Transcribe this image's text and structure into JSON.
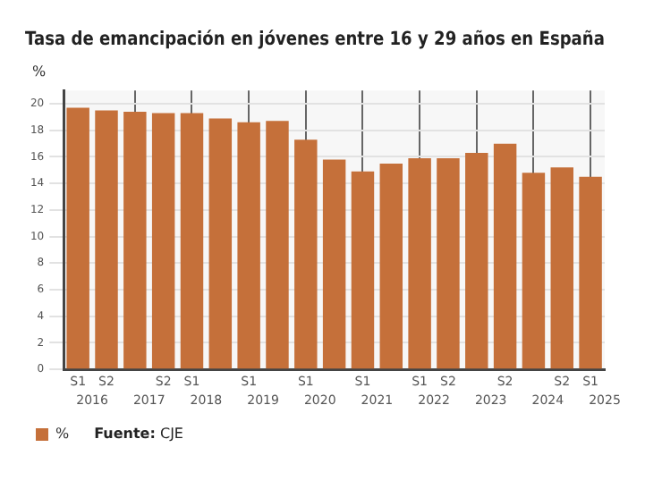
{
  "chart_data": {
    "type": "bar",
    "title": "Tasa de emancipación en jóvenes entre 16 y 29 años en España",
    "ylabel": "%",
    "categories": [
      "S1",
      "S2",
      null,
      "S2",
      "S1",
      null,
      "S1",
      null,
      "S1",
      null,
      "S1",
      null,
      "S1",
      "S2",
      null,
      "S2",
      null,
      "S2",
      "S1"
    ],
    "series": [
      {
        "name": "%",
        "color": "#c5703a",
        "values": [
          19.7,
          19.5,
          19.4,
          19.3,
          19.3,
          18.9,
          18.6,
          18.7,
          17.3,
          15.8,
          14.9,
          15.5,
          15.9,
          15.9,
          16.3,
          17.0,
          14.8,
          15.2,
          14.5
        ]
      }
    ],
    "ylim": [
      0,
      21
    ],
    "yticks": [
      0,
      2,
      4,
      6,
      8,
      10,
      12,
      14,
      16,
      18,
      20
    ],
    "grid": true,
    "legend": "bottom",
    "annotations": [
      "2016",
      "2017",
      "2018",
      "2019",
      "2020",
      "2021",
      "2022",
      "2023",
      "2024",
      "2025",
      "Fuente: CJE"
    ]
  }
}
